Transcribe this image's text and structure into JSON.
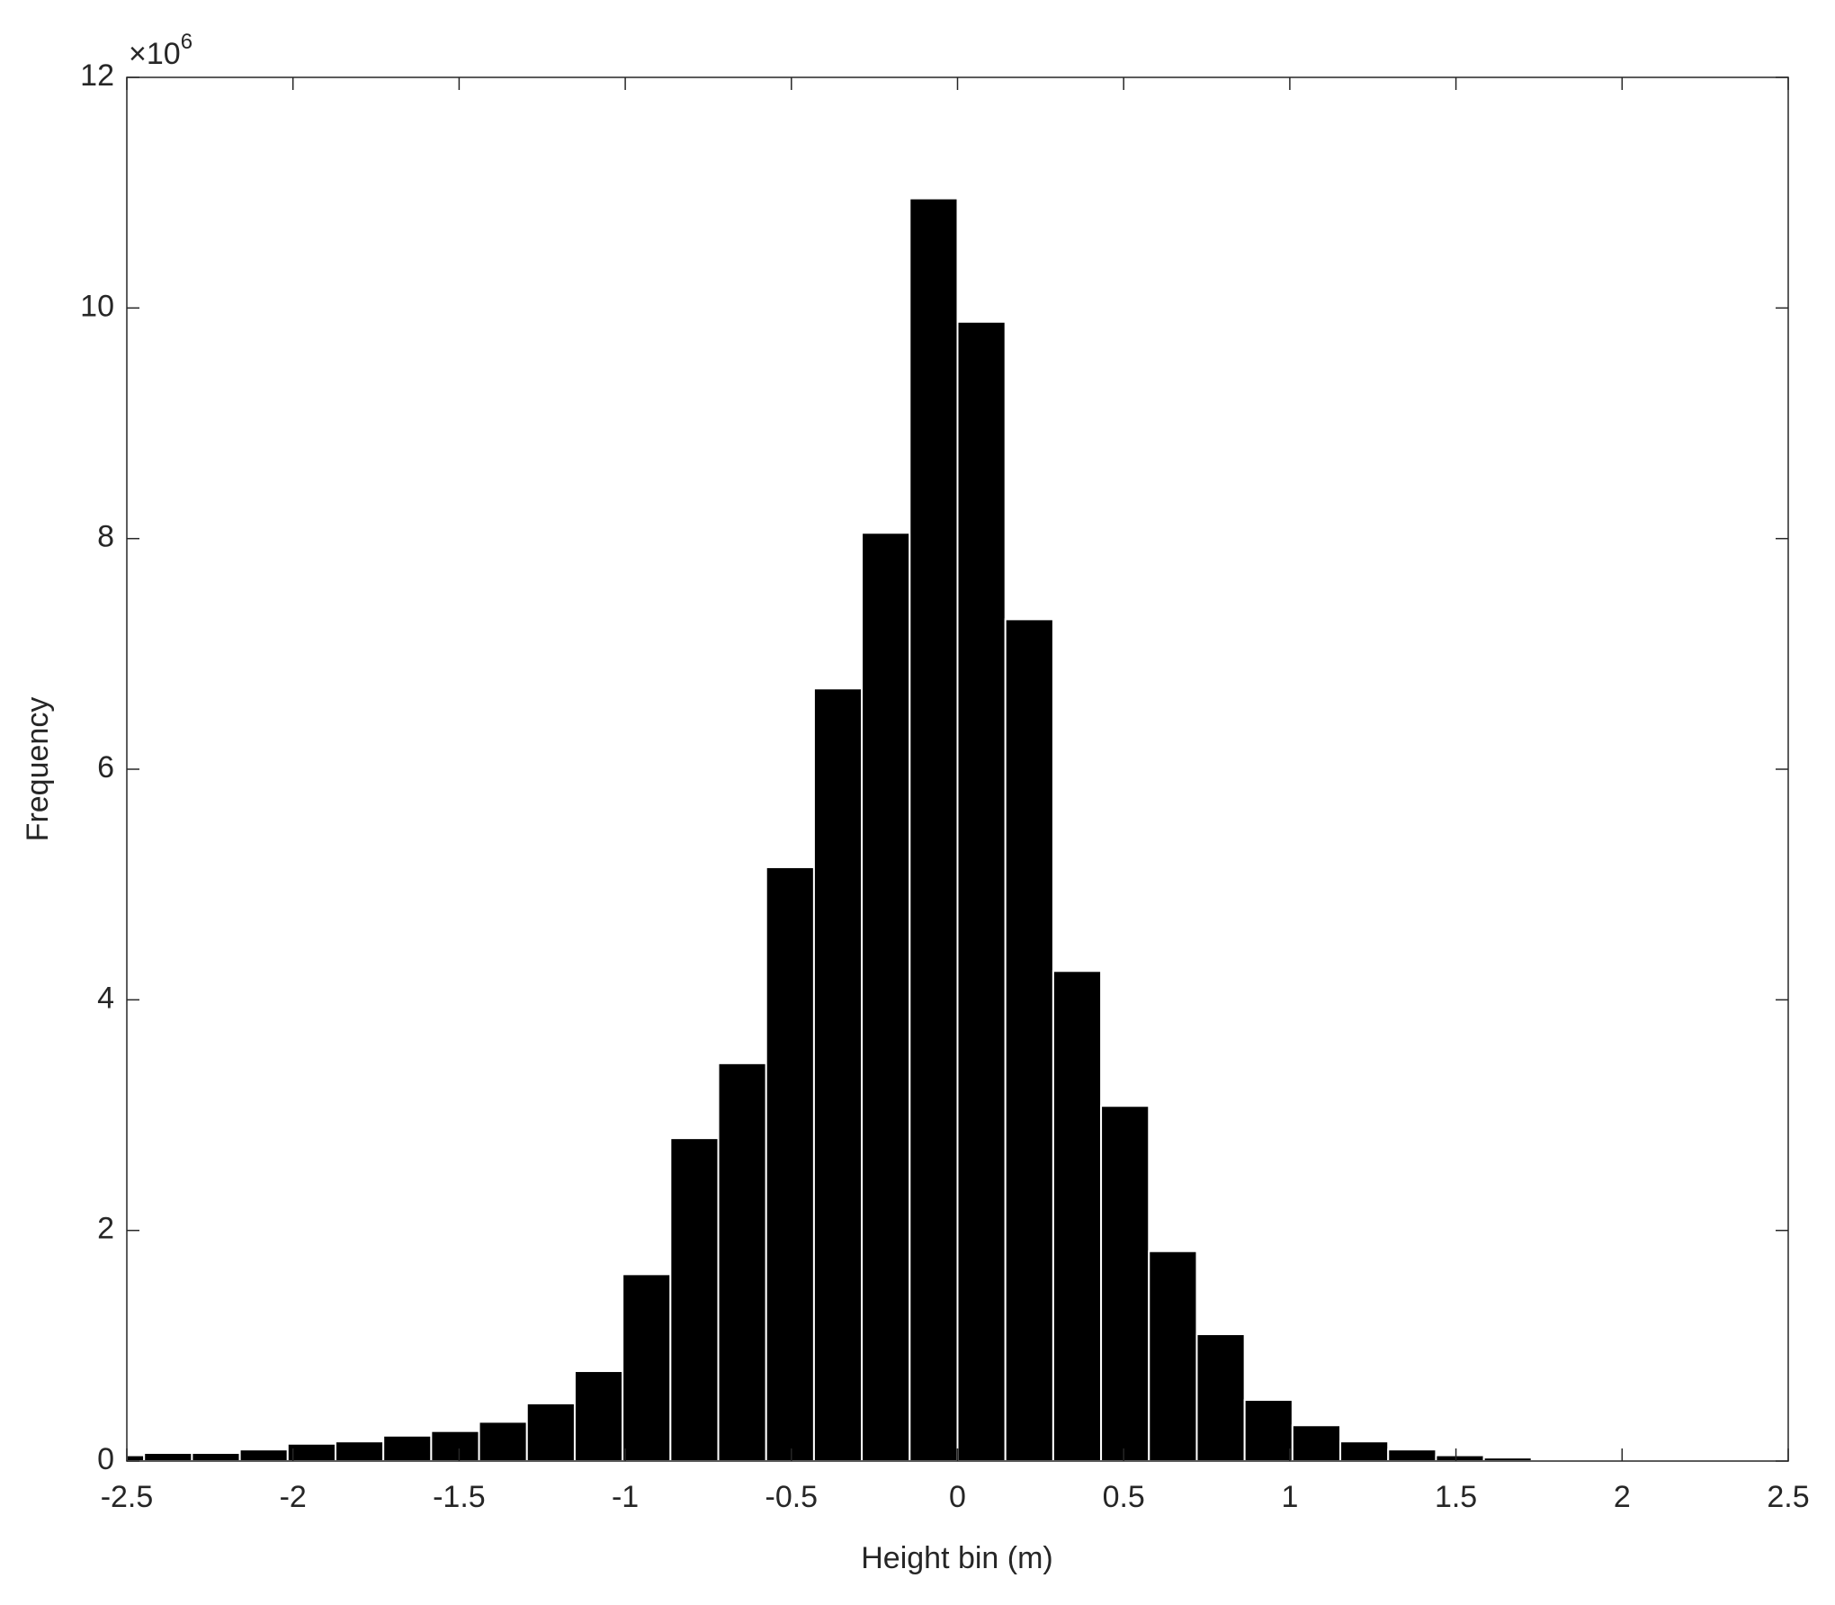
{
  "chart_data": {
    "type": "histogram",
    "xlabel": "Height bin (m)",
    "ylabel": "Frequency",
    "y_multiplier_base": "×10",
    "y_multiplier_exponent": 6,
    "bins": [
      -2.5,
      -2.448,
      -2.304,
      -2.16,
      -2.016,
      -1.872,
      -1.728,
      -1.584,
      -1.44,
      -1.296,
      -1.152,
      -1.008,
      -0.864,
      -0.72,
      -0.576,
      -0.432,
      -0.288,
      -0.144,
      0,
      0.144,
      0.288,
      0.432,
      0.576,
      0.72,
      0.864,
      1.008,
      1.152,
      1.296,
      1.44,
      1.584,
      1.728,
      1.872,
      2.016,
      2.16,
      2.304,
      2.448
    ],
    "values": [
      0.05,
      0.07,
      0.07,
      0.1,
      0.15,
      0.17,
      0.22,
      0.26,
      0.34,
      0.5,
      0.78,
      1.62,
      2.8,
      3.45,
      5.15,
      6.7,
      8.05,
      10.95,
      9.88,
      7.3,
      4.25,
      3.08,
      1.82,
      1.1,
      0.53,
      0.31,
      0.17,
      0.1,
      0.05,
      0.03,
      0.015,
      0.01,
      0.005,
      0.003,
      0.002
    ],
    "color": "#000000",
    "xlim": [
      -2.5,
      2.5
    ],
    "xticks": [
      -2.5,
      -2,
      -1.5,
      -1,
      -0.5,
      0,
      0.5,
      1,
      1.5,
      2,
      2.5
    ],
    "ylim": [
      0,
      12
    ],
    "yticks": [
      0,
      2,
      4,
      6,
      8,
      10,
      12
    ]
  }
}
